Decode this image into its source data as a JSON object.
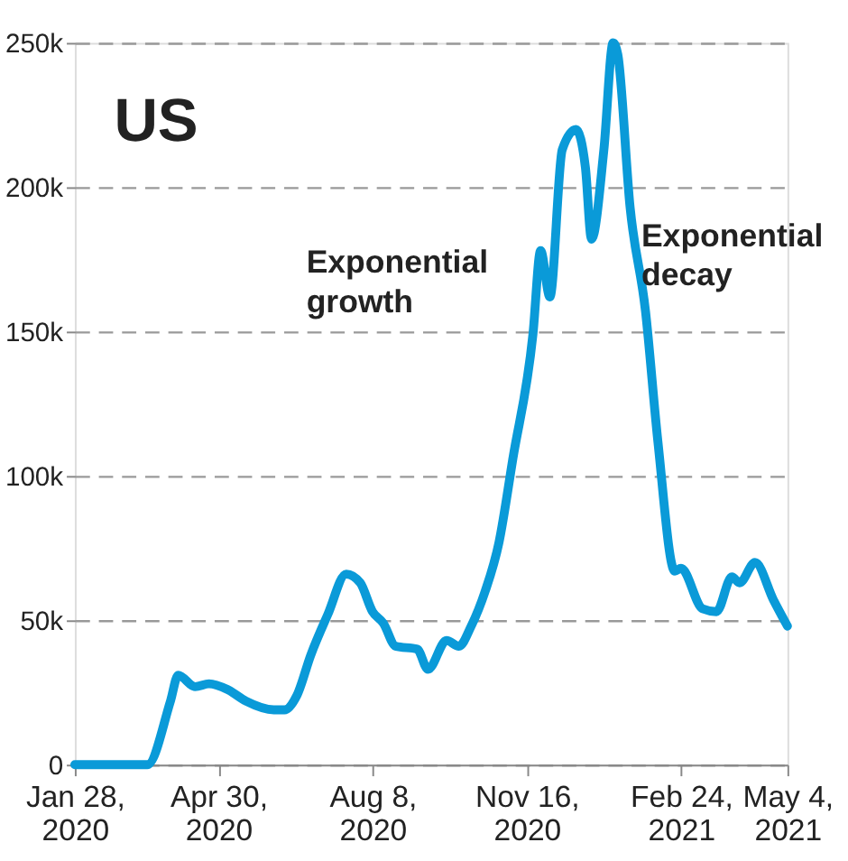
{
  "chart_data": {
    "type": "line",
    "title": "US",
    "annotations": [
      "Exponential growth",
      "Exponential decay"
    ],
    "x": [
      "2020-01-28",
      "2020-03-15",
      "2020-03-30",
      "2020-04-04",
      "2020-04-15",
      "2020-04-24",
      "2020-05-06",
      "2020-05-18",
      "2020-06-05",
      "2020-06-12",
      "2020-06-20",
      "2020-06-29",
      "2020-07-10",
      "2020-07-22",
      "2020-07-31",
      "2020-08-08",
      "2020-08-15",
      "2020-08-23",
      "2020-09-06",
      "2020-09-13",
      "2020-09-25",
      "2020-10-03",
      "2020-10-11",
      "2020-10-20",
      "2020-10-29",
      "2020-11-07",
      "2020-11-20",
      "2020-11-25",
      "2020-12-01",
      "2020-12-09",
      "2020-12-18",
      "2020-12-24",
      "2020-12-28",
      "2021-01-05",
      "2021-01-11",
      "2021-01-14",
      "2021-01-22",
      "2021-02-01",
      "2021-02-09",
      "2021-02-20",
      "2021-02-24",
      "2021-03-10",
      "2021-03-19",
      "2021-03-29",
      "2021-04-03",
      "2021-04-13",
      "2021-04-25",
      "2021-05-04"
    ],
    "series": [
      {
        "color": "#0a9ad8",
        "values": [
          0,
          0,
          22000,
          31000,
          27000,
          28000,
          26000,
          22000,
          19000,
          19000,
          24000,
          38000,
          52000,
          66000,
          63000,
          53000,
          49000,
          41000,
          40000,
          33000,
          43000,
          41000,
          48000,
          60000,
          77000,
          106000,
          149000,
          178000,
          162000,
          213000,
          220000,
          207000,
          182000,
          213000,
          250000,
          246000,
          193000,
          157000,
          112000,
          67000,
          68000,
          54000,
          53000,
          65000,
          63000,
          70000,
          57000,
          48000
        ]
      }
    ],
    "xlim": [
      "2020-01-28",
      "2021-05-04"
    ],
    "xticks": [
      {
        "value": "2020-01-28",
        "label": "Jan 28, 2020"
      },
      {
        "value": "2020-04-30",
        "label": "Apr 30, 2020"
      },
      {
        "value": "2020-08-08",
        "label": "Aug 8, 2020"
      },
      {
        "value": "2020-11-16",
        "label": "Nov 16, 2020"
      },
      {
        "value": "2021-02-24",
        "label": "Feb 24, 2021"
      },
      {
        "value": "2021-05-04",
        "label": "May 4, 2021"
      }
    ],
    "ylim": [
      0,
      250000
    ],
    "yticks": [
      0,
      {
        "value": 50000,
        "label": "50k"
      },
      {
        "value": 100000,
        "label": "100k"
      },
      {
        "value": 150000,
        "label": "150k"
      },
      {
        "value": 200000,
        "label": "200k"
      },
      {
        "value": 250000,
        "label": "250k"
      }
    ],
    "grid": "y",
    "marker": "none",
    "line_style": "solid"
  }
}
